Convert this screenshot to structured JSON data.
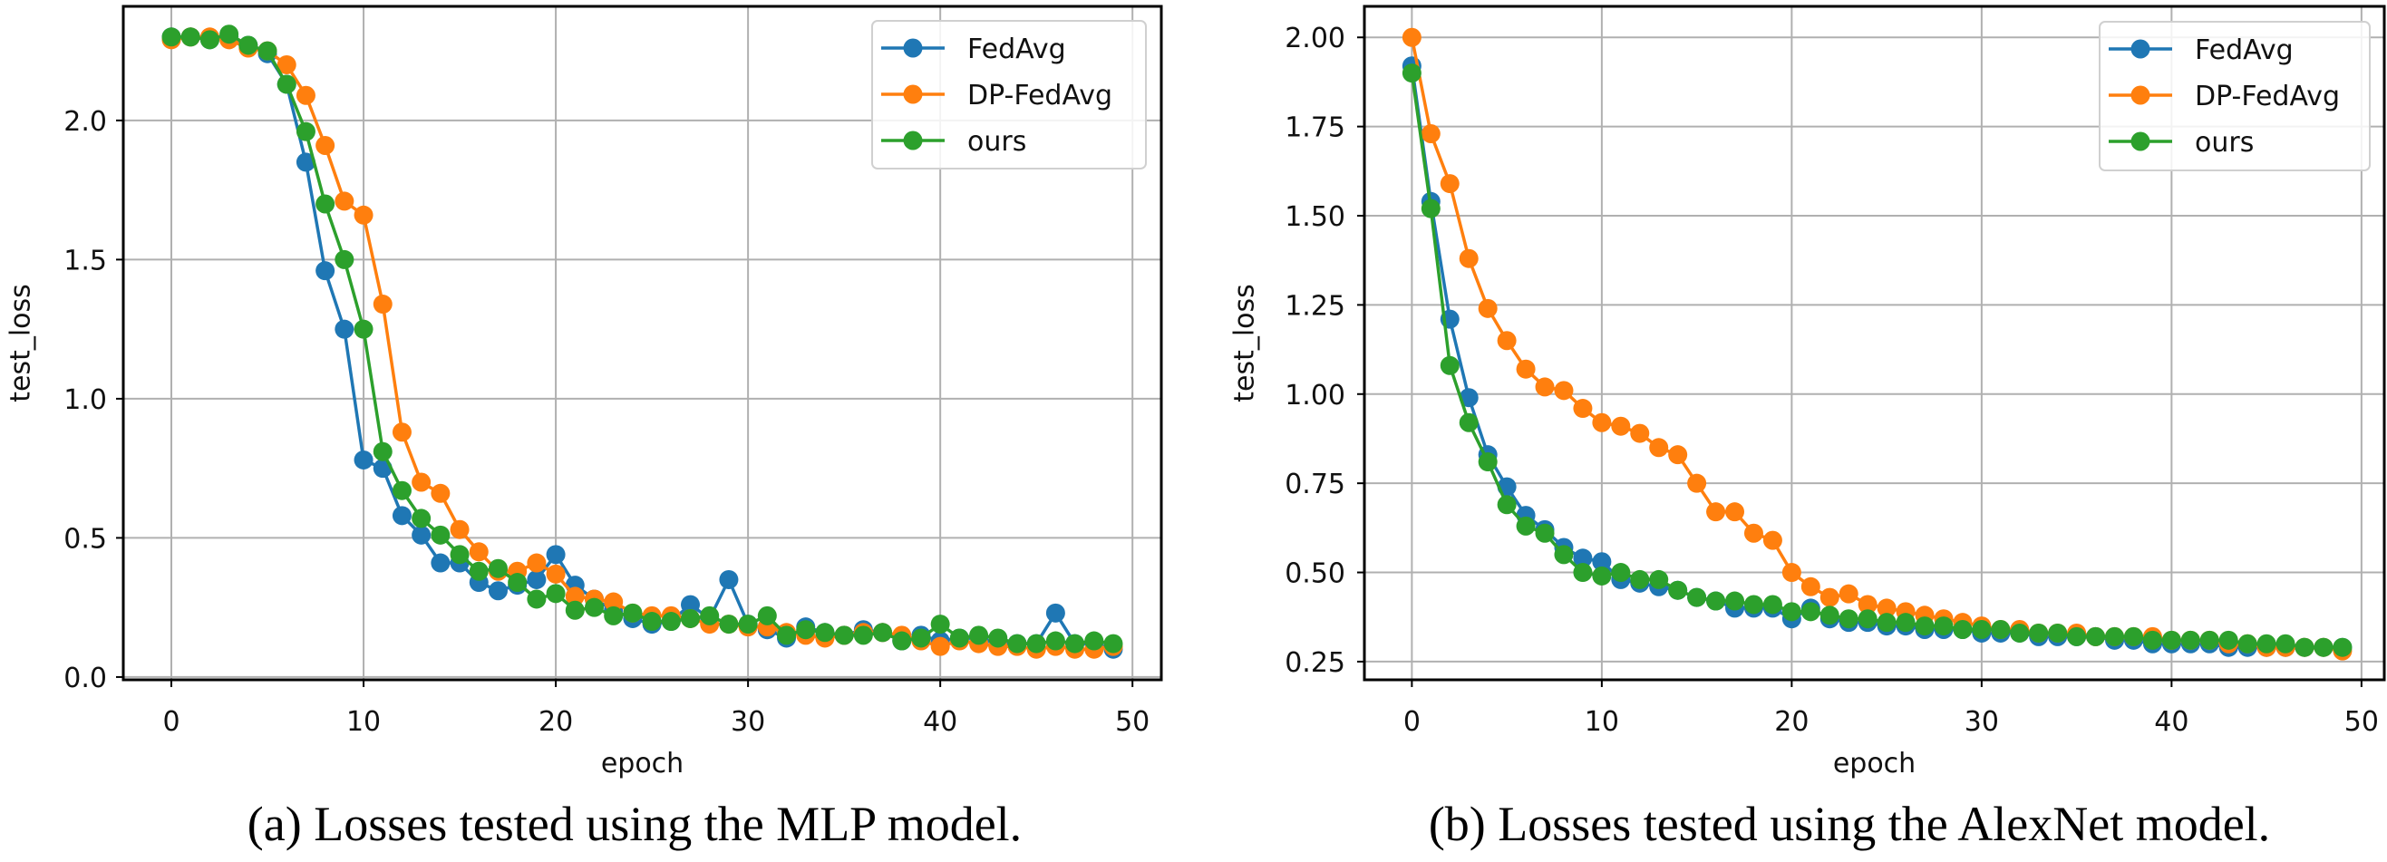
{
  "colors": {
    "FedAvg": "#1f77b4",
    "DP-FedAvg": "#ff7f0e",
    "ours": "#2ca02c"
  },
  "chart_data": [
    {
      "type": "line",
      "caption": "(a) Losses tested using the MLP model.",
      "xlabel": "epoch",
      "ylabel": "test_loss",
      "xlim": [
        -2.5,
        51.5
      ],
      "ylim": [
        -0.01,
        2.41
      ],
      "xticks": [
        0,
        10,
        20,
        30,
        40,
        50
      ],
      "yticks": [
        0.0,
        0.5,
        1.0,
        1.5,
        2.0
      ],
      "ytick_labels": [
        "0.0",
        "0.5",
        "1.0",
        "1.5",
        "2.0"
      ],
      "grid": true,
      "legend": "top-right",
      "x": [
        0,
        1,
        2,
        3,
        4,
        5,
        6,
        7,
        8,
        9,
        10,
        11,
        12,
        13,
        14,
        15,
        16,
        17,
        18,
        19,
        20,
        21,
        22,
        23,
        24,
        25,
        26,
        27,
        28,
        29,
        30,
        31,
        32,
        33,
        34,
        35,
        36,
        37,
        38,
        39,
        40,
        41,
        42,
        43,
        44,
        45,
        46,
        47,
        48,
        49
      ],
      "series": [
        {
          "name": "FedAvg",
          "values": [
            2.3,
            2.3,
            2.29,
            2.3,
            2.27,
            2.24,
            2.13,
            1.85,
            1.46,
            1.25,
            0.78,
            0.75,
            0.58,
            0.51,
            0.41,
            0.41,
            0.34,
            0.31,
            0.33,
            0.35,
            0.44,
            0.33,
            0.28,
            0.24,
            0.21,
            0.19,
            0.2,
            0.26,
            0.21,
            0.35,
            0.19,
            0.17,
            0.14,
            0.18,
            0.16,
            0.15,
            0.17,
            0.16,
            0.13,
            0.15,
            0.13,
            0.14,
            0.14,
            0.12,
            0.12,
            0.12,
            0.23,
            0.12,
            0.12,
            0.1
          ]
        },
        {
          "name": "DP-FedAvg",
          "values": [
            2.29,
            2.3,
            2.3,
            2.29,
            2.26,
            2.25,
            2.2,
            2.09,
            1.91,
            1.71,
            1.66,
            1.34,
            0.88,
            0.7,
            0.66,
            0.53,
            0.45,
            0.38,
            0.38,
            0.41,
            0.37,
            0.29,
            0.28,
            0.27,
            0.23,
            0.22,
            0.22,
            0.21,
            0.19,
            0.19,
            0.18,
            0.18,
            0.16,
            0.15,
            0.14,
            0.15,
            0.16,
            0.16,
            0.15,
            0.13,
            0.11,
            0.13,
            0.12,
            0.11,
            0.11,
            0.1,
            0.11,
            0.1,
            0.1,
            0.11
          ]
        },
        {
          "name": "ours",
          "values": [
            2.3,
            2.3,
            2.29,
            2.31,
            2.27,
            2.25,
            2.13,
            1.96,
            1.7,
            1.5,
            1.25,
            0.81,
            0.67,
            0.57,
            0.51,
            0.44,
            0.38,
            0.39,
            0.34,
            0.28,
            0.3,
            0.24,
            0.25,
            0.22,
            0.23,
            0.2,
            0.2,
            0.21,
            0.22,
            0.19,
            0.19,
            0.22,
            0.15,
            0.17,
            0.16,
            0.15,
            0.15,
            0.16,
            0.13,
            0.14,
            0.19,
            0.14,
            0.15,
            0.14,
            0.12,
            0.12,
            0.13,
            0.12,
            0.13,
            0.12
          ]
        }
      ]
    },
    {
      "type": "line",
      "caption": "(b) Losses tested using the AlexNet model.",
      "xlabel": "epoch",
      "ylabel": "test_loss",
      "xlim": [
        -2.5,
        51.2
      ],
      "ylim": [
        0.199,
        2.087
      ],
      "xticks": [
        0,
        10,
        20,
        30,
        40,
        50
      ],
      "yticks": [
        0.25,
        0.5,
        0.75,
        1.0,
        1.25,
        1.5,
        1.75,
        2.0
      ],
      "ytick_labels": [
        "0.25",
        "0.50",
        "0.75",
        "1.00",
        "1.25",
        "1.50",
        "1.75",
        "2.00"
      ],
      "grid": true,
      "legend": "top-right",
      "x": [
        0,
        1,
        2,
        3,
        4,
        5,
        6,
        7,
        8,
        9,
        10,
        11,
        12,
        13,
        14,
        15,
        16,
        17,
        18,
        19,
        20,
        21,
        22,
        23,
        24,
        25,
        26,
        27,
        28,
        29,
        30,
        31,
        32,
        33,
        34,
        35,
        36,
        37,
        38,
        39,
        40,
        41,
        42,
        43,
        44,
        45,
        46,
        47,
        48,
        49
      ],
      "series": [
        {
          "name": "FedAvg",
          "values": [
            1.92,
            1.54,
            1.21,
            0.99,
            0.83,
            0.74,
            0.66,
            0.62,
            0.57,
            0.54,
            0.53,
            0.48,
            0.47,
            0.46,
            0.45,
            0.43,
            0.42,
            0.4,
            0.4,
            0.4,
            0.37,
            0.4,
            0.37,
            0.36,
            0.36,
            0.35,
            0.35,
            0.34,
            0.34,
            0.34,
            0.33,
            0.33,
            0.33,
            0.32,
            0.32,
            0.32,
            0.32,
            0.31,
            0.31,
            0.3,
            0.3,
            0.3,
            0.3,
            0.29,
            0.29,
            0.29,
            0.29,
            0.29,
            0.29,
            0.29
          ]
        },
        {
          "name": "DP-FedAvg",
          "values": [
            2.0,
            1.73,
            1.59,
            1.38,
            1.24,
            1.15,
            1.07,
            1.02,
            1.01,
            0.96,
            0.92,
            0.91,
            0.89,
            0.85,
            0.83,
            0.75,
            0.67,
            0.67,
            0.61,
            0.59,
            0.5,
            0.46,
            0.43,
            0.44,
            0.41,
            0.4,
            0.39,
            0.38,
            0.37,
            0.36,
            0.35,
            0.34,
            0.34,
            0.33,
            0.33,
            0.33,
            0.32,
            0.32,
            0.32,
            0.32,
            0.31,
            0.31,
            0.31,
            0.3,
            0.3,
            0.29,
            0.29,
            0.29,
            0.29,
            0.28
          ]
        },
        {
          "name": "ours",
          "values": [
            1.9,
            1.52,
            1.08,
            0.92,
            0.81,
            0.69,
            0.63,
            0.61,
            0.55,
            0.5,
            0.49,
            0.5,
            0.48,
            0.48,
            0.45,
            0.43,
            0.42,
            0.42,
            0.41,
            0.41,
            0.39,
            0.39,
            0.38,
            0.37,
            0.37,
            0.36,
            0.36,
            0.35,
            0.35,
            0.34,
            0.34,
            0.34,
            0.33,
            0.33,
            0.33,
            0.32,
            0.32,
            0.32,
            0.32,
            0.31,
            0.31,
            0.31,
            0.31,
            0.31,
            0.3,
            0.3,
            0.3,
            0.29,
            0.29,
            0.29
          ]
        }
      ]
    }
  ]
}
